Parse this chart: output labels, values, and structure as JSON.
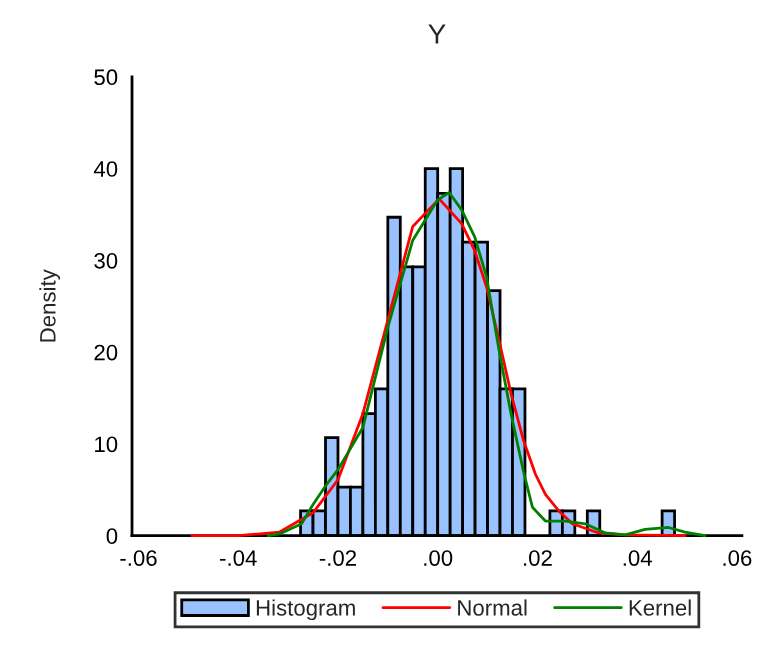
{
  "chart_data": {
    "type": "histogram",
    "title": "Y",
    "ylabel": "Density",
    "bins": [
      -0.0275,
      -0.025,
      -0.0225,
      -0.02,
      -0.0175,
      -0.015,
      -0.0125,
      -0.01,
      -0.0075,
      -0.005,
      -0.0025,
      0,
      0.0025,
      0.005,
      0.0075,
      0.01,
      0.0125,
      0.015,
      0.0175,
      0.02,
      0.0225,
      0.025,
      0.0275,
      0.03,
      0.0325,
      0.035,
      0.0375,
      0.04,
      0.0425,
      0.045,
      0.0475
    ],
    "series": [
      {
        "name": "Histogram",
        "color": "#99c2ff",
        "values": [
          2.7,
          2.7,
          10.7,
          5.3,
          5.3,
          13.3,
          16,
          34.7,
          29.3,
          29.3,
          40,
          37.3,
          40,
          32,
          32,
          26.7,
          16,
          16,
          null,
          null,
          2.7,
          2.7,
          null,
          2.7,
          null,
          null,
          null,
          null,
          null,
          2.7
        ]
      },
      {
        "name": "Normal",
        "type": "line",
        "color": "#ff0000",
        "x": [
          -0.0493,
          -0.04,
          -0.0317,
          -0.025,
          -0.02,
          -0.015,
          -0.01,
          -0.005,
          0.0003,
          0.0048,
          0.0074,
          0.0098,
          0.0123,
          0.0147,
          0.0172,
          0.0196,
          0.0216,
          0.0243,
          0.027,
          0.0323,
          0.0376,
          0.0496
        ],
        "values": [
          0,
          0,
          0.4,
          2.5,
          6.1,
          13.3,
          23.5,
          33.7,
          36.7,
          34,
          31.1,
          27.1,
          21.3,
          15.5,
          10.4,
          6.7,
          4.5,
          2.7,
          1.3,
          0.3,
          0.1,
          0
        ]
      },
      {
        "name": "Kernel",
        "type": "line",
        "color": "#008000",
        "x": [
          -0.034,
          -0.0317,
          -0.0273,
          -0.025,
          -0.0224,
          -0.02,
          -0.015,
          -0.01,
          -0.005,
          0,
          0.0023,
          0.0048,
          0.0074,
          0.0098,
          0.0123,
          0.0147,
          0.0172,
          0.019,
          0.0216,
          0.0256,
          0.0296,
          0.0336,
          0.0376,
          0.0416,
          0.0463,
          0.0496,
          0.0536
        ],
        "values": [
          0,
          0.2,
          1.3,
          3.4,
          5.5,
          7.2,
          11.8,
          22.7,
          32.2,
          36.6,
          37.4,
          35.5,
          32.6,
          28.2,
          20.2,
          13.3,
          7,
          3.1,
          1.6,
          1.6,
          1.3,
          0.3,
          0.1,
          0.7,
          0.9,
          0.4,
          0
        ]
      }
    ],
    "xlim": [
      -0.0613,
      0.061
    ],
    "xticks": [
      {
        "value": -0.06,
        "label": "-.06"
      },
      {
        "value": -0.04,
        "label": "-.04"
      },
      {
        "value": -0.02,
        "label": "-.02"
      },
      {
        "value": 0,
        "label": ".00"
      },
      {
        "value": 0.02,
        "label": ".02"
      },
      {
        "value": 0.04,
        "label": ".04"
      },
      {
        "value": 0.06,
        "label": ".06"
      }
    ],
    "ylim": [
      0,
      50
    ],
    "yticks": [
      0,
      10,
      20,
      30,
      40,
      50
    ],
    "grid": false,
    "legend": "bottom",
    "marker": "none",
    "line_style": "solid"
  }
}
